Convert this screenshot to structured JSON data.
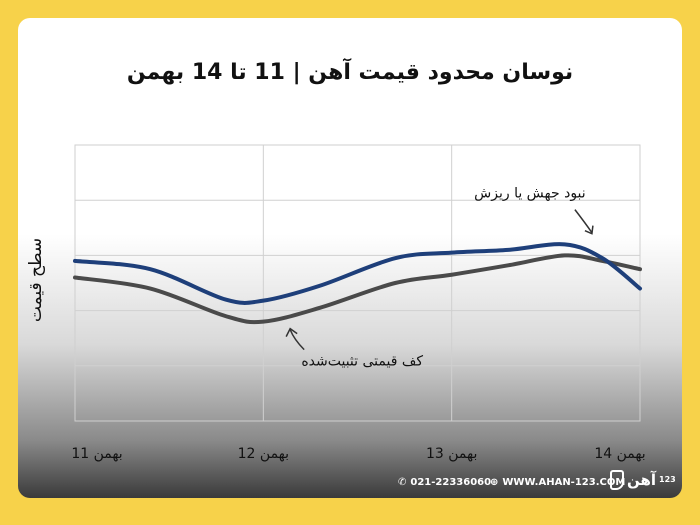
{
  "title": "نوسان محدود قیمت آهن | 11 تا 14 بهمن",
  "footer": {
    "phone": "021-22336060",
    "website": "WWW.AHAN-123.COM",
    "logo_text": "آهن",
    "logo_num": "123",
    "phone_icon": "phone-icon",
    "web_icon": "globe-icon"
  },
  "colors": {
    "background": "#f7d24a",
    "blue_line": "#1e3f7a",
    "gray_line": "#4a4a4a"
  },
  "chart_data": {
    "type": "line",
    "title": "نوسان محدود قیمت آهن | 11 تا 14 بهمن",
    "xlabel": "",
    "ylabel": "سطح قیمت",
    "x": [
      "11 بهمن",
      "12 بهمن",
      "13 بهمن",
      "14 بهمن"
    ],
    "xlim": [
      0,
      3
    ],
    "ylim": [
      0,
      5
    ],
    "grid": true,
    "series": [
      {
        "color": "#1e3f7a",
        "points": [
          [
            0,
            2.9
          ],
          [
            0.4,
            2.75
          ],
          [
            0.8,
            2.2
          ],
          [
            1.0,
            2.18
          ],
          [
            1.3,
            2.45
          ],
          [
            1.7,
            2.95
          ],
          [
            2.0,
            3.05
          ],
          [
            2.3,
            3.1
          ],
          [
            2.6,
            3.2
          ],
          [
            2.8,
            2.95
          ],
          [
            3.0,
            2.4
          ]
        ]
      },
      {
        "color": "#4a4a4a",
        "points": [
          [
            0,
            2.6
          ],
          [
            0.4,
            2.4
          ],
          [
            0.8,
            1.9
          ],
          [
            1.0,
            1.8
          ],
          [
            1.3,
            2.05
          ],
          [
            1.7,
            2.5
          ],
          [
            2.0,
            2.65
          ],
          [
            2.3,
            2.82
          ],
          [
            2.6,
            3.0
          ],
          [
            2.8,
            2.9
          ],
          [
            3.0,
            2.75
          ]
        ]
      }
    ],
    "annotations": [
      {
        "text": "نبود جهش یا ریزش",
        "x": 2.15,
        "y": 3.05
      },
      {
        "text": "کف قیمتی تثبیت‌شده",
        "x": 1.1,
        "y": 1.8
      }
    ]
  }
}
